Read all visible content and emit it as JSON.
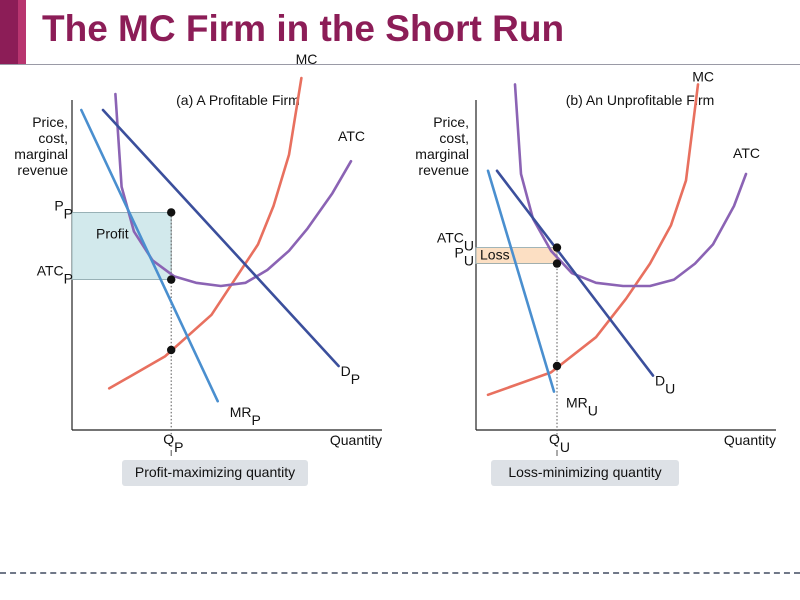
{
  "slide": {
    "title": "The MC Firm in the Short Run"
  },
  "chart_data": [
    {
      "type": "line",
      "panel_title": "(a) A Profitable Firm",
      "ylabel": [
        "Price,",
        "cost,",
        "marginal",
        "revenue"
      ],
      "xlabel": "Quantity",
      "xlim": [
        0,
        10
      ],
      "ylim": [
        0,
        10
      ],
      "series": [
        {
          "name": "MC",
          "color": "#e8705f",
          "x": [
            1.2,
            3.0,
            4.5,
            6.0,
            6.5,
            7.0,
            7.4
          ],
          "y": [
            1.3,
            2.3,
            3.6,
            5.8,
            7.0,
            8.6,
            11.0
          ]
        },
        {
          "name": "ATC",
          "color": "#8b63b4",
          "x": [
            1.4,
            1.6,
            2.0,
            2.6,
            3.3,
            4.0,
            4.8,
            5.6,
            6.3,
            7.0,
            7.6,
            8.4,
            9.0
          ],
          "y": [
            10.5,
            7.6,
            6.2,
            5.3,
            4.8,
            4.6,
            4.5,
            4.6,
            5.0,
            5.6,
            6.3,
            7.4,
            8.4
          ]
        },
        {
          "name": "D",
          "subscript": "P",
          "color": "#3b4f9c",
          "x": [
            1.0,
            8.6
          ],
          "y": [
            10.0,
            2.0
          ]
        },
        {
          "name": "MR",
          "subscript": "P",
          "color": "#4a8fcf",
          "x": [
            0.3,
            4.7
          ],
          "y": [
            10.0,
            0.9
          ]
        }
      ],
      "levels": {
        "Q": 3.2,
        "P": 6.8,
        "ATC": 4.7,
        "MC_at_Q": 2.5
      },
      "axis_labels": {
        "P": {
          "main": "P",
          "sub": "P"
        },
        "ATC": {
          "main": "ATC",
          "sub": "P"
        },
        "Q": {
          "main": "Q",
          "sub": "P"
        }
      },
      "shaded_region": {
        "label": "Profit",
        "color": "#d2e9ec"
      },
      "bottom_label": "Profit-maximizing quantity"
    },
    {
      "type": "line",
      "panel_title": "(b) An Unprofitable Firm",
      "ylabel": [
        "Price,",
        "cost,",
        "marginal",
        "revenue"
      ],
      "xlabel": "Quantity",
      "xlim": [
        0,
        10
      ],
      "ylim": [
        0,
        10
      ],
      "series": [
        {
          "name": "MC",
          "color": "#e8705f",
          "x": [
            0.4,
            2.5,
            4.0,
            5.0,
            5.8,
            6.5,
            7.0,
            7.4
          ],
          "y": [
            1.1,
            1.8,
            2.9,
            4.1,
            5.2,
            6.4,
            7.8,
            10.8
          ]
        },
        {
          "name": "ATC",
          "color": "#8b63b4",
          "x": [
            1.3,
            1.5,
            1.9,
            2.5,
            3.2,
            4.0,
            4.9,
            5.8,
            6.6,
            7.3,
            7.9,
            8.6,
            9.0
          ],
          "y": [
            10.8,
            8.0,
            6.6,
            5.6,
            4.9,
            4.6,
            4.5,
            4.5,
            4.7,
            5.2,
            5.8,
            7.0,
            8.0
          ]
        },
        {
          "name": "D",
          "subscript": "U",
          "color": "#3b4f9c",
          "x": [
            0.7,
            5.9
          ],
          "y": [
            8.1,
            1.7
          ]
        },
        {
          "name": "MR",
          "subscript": "U",
          "color": "#4a8fcf",
          "x": [
            0.4,
            2.6
          ],
          "y": [
            8.1,
            1.2
          ]
        }
      ],
      "levels": {
        "Q": 2.7,
        "P": 5.2,
        "ATC": 5.7,
        "MC_at_Q": 2.0
      },
      "axis_labels": {
        "ATC": {
          "main": "ATC",
          "sub": "U"
        },
        "P": {
          "main": "P",
          "sub": "U"
        },
        "Q": {
          "main": "Q",
          "sub": "U"
        }
      },
      "shaded_region": {
        "label": "Loss",
        "color": "#fcdfc3"
      },
      "bottom_label": "Loss-minimizing quantity"
    }
  ]
}
